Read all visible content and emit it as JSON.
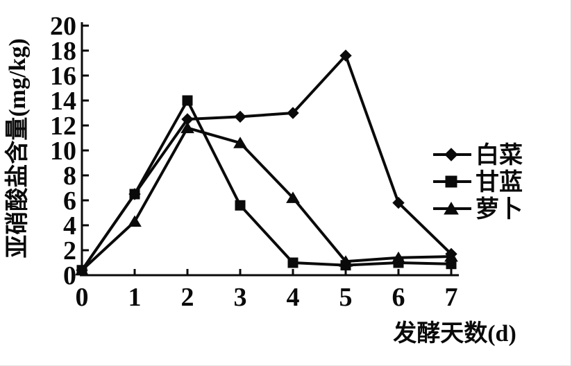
{
  "chart_data": {
    "type": "line",
    "title": "",
    "xlabel": "发酵天数(d)",
    "ylabel": "亚硝酸盐含量(mg/kg)",
    "x": [
      0,
      1,
      2,
      3,
      4,
      5,
      6,
      7
    ],
    "xticks": [
      "0",
      "1",
      "2",
      "3",
      "4",
      "5",
      "6",
      "7"
    ],
    "yticks": [
      "0",
      "2",
      "4",
      "6",
      "8",
      "10",
      "12",
      "14",
      "16",
      "18",
      "20"
    ],
    "ytick_values": [
      0,
      2,
      4,
      6,
      8,
      10,
      12,
      14,
      16,
      18,
      20
    ],
    "xlim": [
      0,
      7
    ],
    "ylim": [
      0,
      20
    ],
    "grid": false,
    "legend_position": "right",
    "series": [
      {
        "id": "baicai",
        "name": "白菜",
        "marker": "diamond",
        "color": "#0a0a0a",
        "values": [
          0.4,
          6.5,
          12.5,
          12.7,
          13.0,
          17.6,
          5.8,
          1.7
        ]
      },
      {
        "id": "ganlan",
        "name": "甘蓝",
        "marker": "square",
        "color": "#0a0a0a",
        "values": [
          0.4,
          6.5,
          14.0,
          5.6,
          1.0,
          0.8,
          1.0,
          0.9
        ]
      },
      {
        "id": "luobo",
        "name": "萝卜",
        "marker": "triangle",
        "color": "#0a0a0a",
        "values": [
          0.4,
          4.3,
          11.8,
          10.6,
          6.2,
          1.1,
          1.4,
          1.5
        ]
      }
    ]
  },
  "colors": {
    "axis": "#0a0a0a",
    "background": "#ffffff"
  }
}
